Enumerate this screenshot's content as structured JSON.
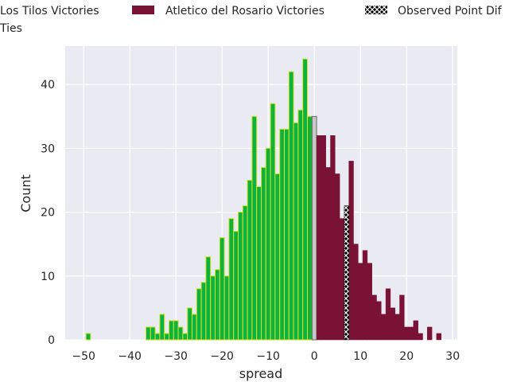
{
  "chart_data": {
    "type": "bar",
    "xlabel": "spread",
    "ylabel": "Count",
    "xlim": [
      -54,
      31
    ],
    "ylim": [
      0,
      46
    ],
    "xticks": [
      -50,
      -40,
      -30,
      -20,
      -10,
      0,
      10,
      20,
      30
    ],
    "yticks": [
      0,
      10,
      20,
      30,
      40
    ],
    "xtick_labels": [
      "−50",
      "−40",
      "−30",
      "−20",
      "−10",
      "0",
      "10",
      "20",
      "30"
    ],
    "ytick_labels": [
      "0",
      "10",
      "20",
      "30",
      "40"
    ],
    "grid": true,
    "legend_position": "top",
    "colors": {
      "los_tilos": "#0db33c",
      "los_tilos_edge": "#d4e02a",
      "rosario": "#7a1236",
      "ties": "#c8c8c8",
      "observed": "#000000",
      "background": "#eaeaf2",
      "grid": "#ffffff"
    },
    "legend": [
      {
        "key": "los_tilos",
        "label": "Los Tilos Victories"
      },
      {
        "key": "rosario",
        "label": "Atletico del Rosario Victories"
      },
      {
        "key": "observed",
        "label": "Observed Point Dif"
      },
      {
        "key": "ties",
        "label": "Ties"
      }
    ],
    "series": [
      {
        "name": "Los Tilos Victories",
        "x": [
          -49,
          -36,
          -35,
          -34,
          -33,
          -32,
          -31,
          -30,
          -29,
          -28,
          -27,
          -26,
          -25,
          -24,
          -23,
          -22,
          -21,
          -20,
          -19,
          -18,
          -17,
          -16,
          -15,
          -14,
          -13,
          -12,
          -11,
          -10,
          -9,
          -8,
          -7,
          -6,
          -5,
          -4,
          -3,
          -2,
          -1
        ],
        "values": [
          1,
          2,
          2,
          1,
          4,
          1,
          3,
          3,
          2,
          1,
          5,
          4,
          8,
          9,
          13,
          10,
          11,
          16,
          10,
          19,
          17,
          20,
          21,
          25,
          35,
          24,
          27,
          30,
          37,
          26,
          33,
          33,
          42,
          34,
          36,
          44,
          35
        ]
      },
      {
        "name": "Ties",
        "x": [
          0
        ],
        "values": [
          35
        ]
      },
      {
        "name": "Atletico del Rosario Victories",
        "x": [
          1,
          2,
          3,
          4,
          5,
          6,
          8,
          9,
          10,
          11,
          12,
          13,
          14,
          15,
          16,
          17,
          18,
          19,
          20,
          21,
          22,
          23,
          25,
          27
        ],
        "values": [
          32,
          32,
          27,
          32,
          26,
          19,
          28,
          15,
          12,
          14,
          12,
          7,
          6,
          4,
          8,
          5,
          4,
          7,
          2,
          2,
          3,
          1,
          2,
          1
        ]
      },
      {
        "name": "Observed Point Dif",
        "x": [
          7
        ],
        "values": [
          21
        ]
      }
    ]
  }
}
